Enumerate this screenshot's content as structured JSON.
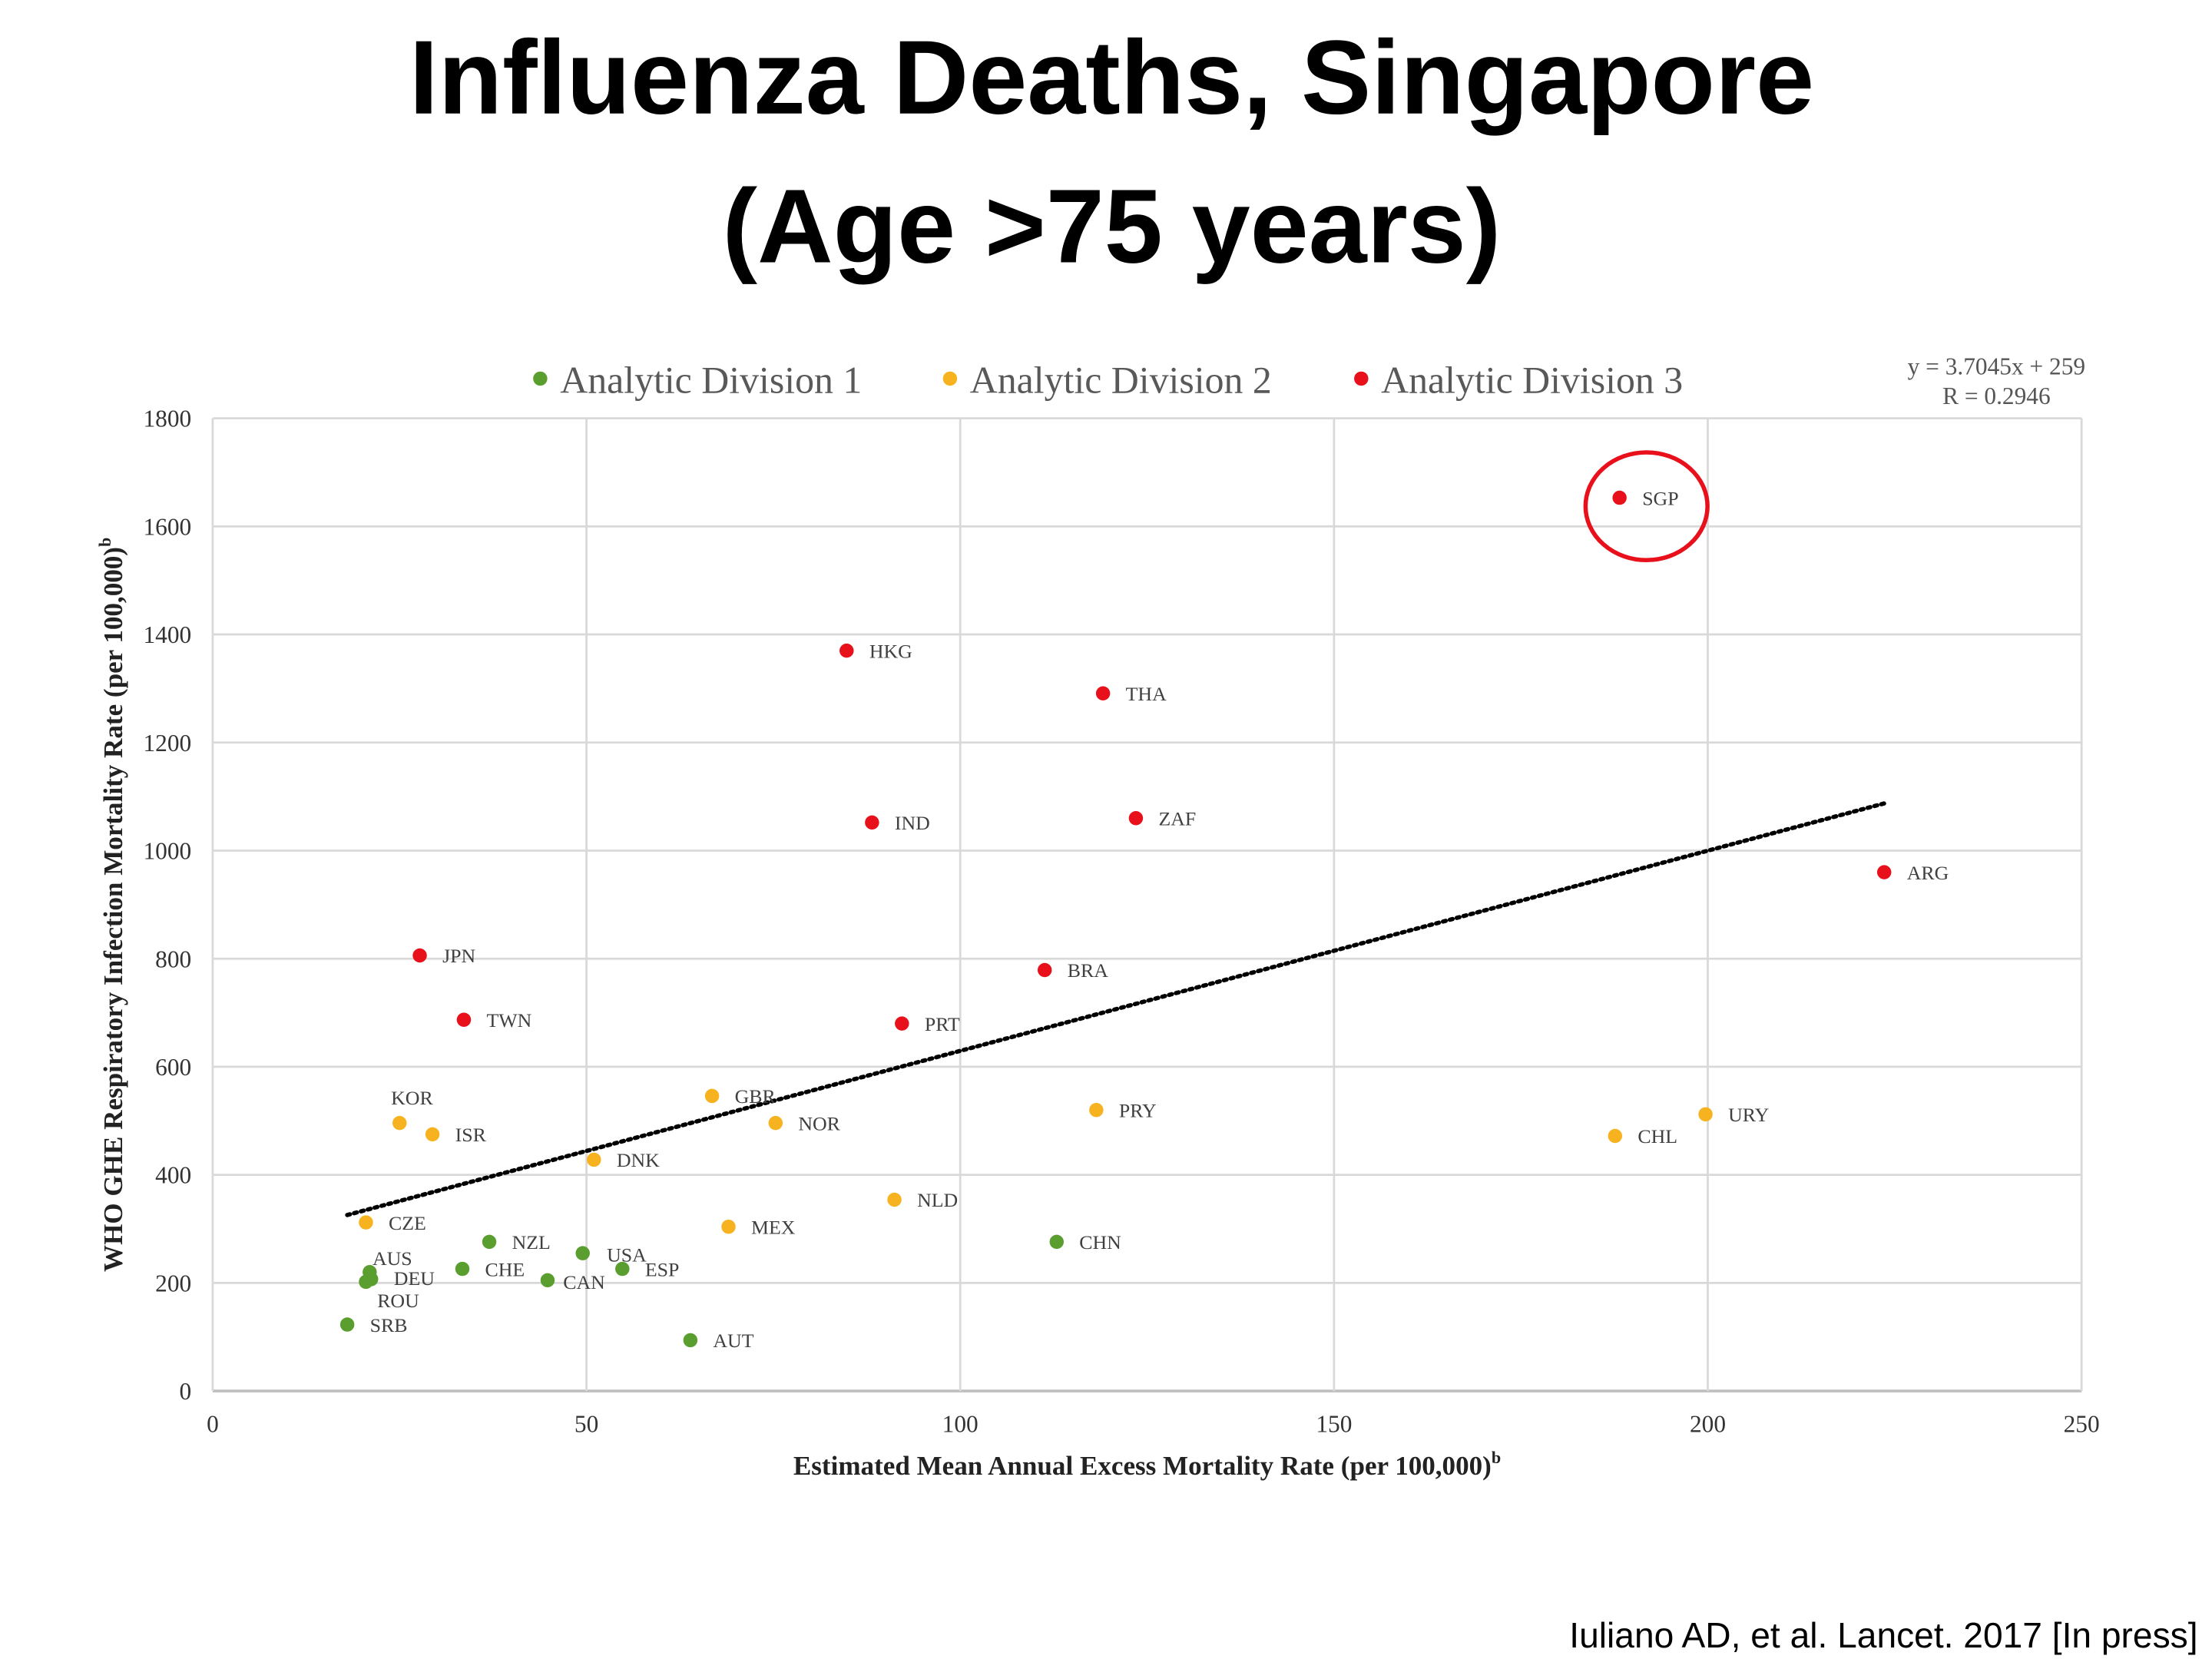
{
  "slide": {
    "title_line1": "Influenza Deaths, Singapore",
    "title_line2": "(Age >75 years)",
    "citation": "Iuliano AD, et al. Lancet. 2017 [In press]"
  },
  "chart_data": {
    "type": "scatter",
    "xlabel": "Estimated Mean Annual Excess Mortality Rate (per 100,000)",
    "xlabel_sup": "b",
    "ylabel": "WHO GHE Respiratory Infection Mortality Rate (per 100,000)",
    "ylabel_sup": "b",
    "xlim": [
      0,
      250
    ],
    "ylim": [
      0,
      1800
    ],
    "xticks": [
      0,
      50,
      100,
      150,
      200,
      250
    ],
    "yticks": [
      0,
      200,
      400,
      600,
      800,
      1000,
      1200,
      1400,
      1600,
      1800
    ],
    "grid": true,
    "legend_position": "top",
    "series": [
      {
        "name": "Analytic Division 1",
        "color": "#5a9e2f",
        "points": [
          {
            "label": "AUS",
            "x": 21.0,
            "y": 220
          },
          {
            "label": "DEU",
            "x": 21.2,
            "y": 207
          },
          {
            "label": "ROU",
            "x": 20.5,
            "y": 202
          },
          {
            "label": "SRB",
            "x": 18.0,
            "y": 123
          },
          {
            "label": "CHE",
            "x": 33.4,
            "y": 226
          },
          {
            "label": "NZL",
            "x": 37.0,
            "y": 276
          },
          {
            "label": "CAN",
            "x": 44.8,
            "y": 205
          },
          {
            "label": "USA",
            "x": 49.5,
            "y": 255
          },
          {
            "label": "ESP",
            "x": 54.8,
            "y": 226
          },
          {
            "label": "AUT",
            "x": 63.9,
            "y": 94
          },
          {
            "label": "CHN",
            "x": 112.9,
            "y": 276
          }
        ]
      },
      {
        "name": "Analytic Division 2",
        "color": "#f7b21f",
        "points": [
          {
            "label": "CZE",
            "x": 20.5,
            "y": 312
          },
          {
            "label": "KOR",
            "x": 25.0,
            "y": 496
          },
          {
            "label": "ISR",
            "x": 29.4,
            "y": 475
          },
          {
            "label": "DNK",
            "x": 51.0,
            "y": 428
          },
          {
            "label": "GBR",
            "x": 66.8,
            "y": 546
          },
          {
            "label": "MEX",
            "x": 69.0,
            "y": 304
          },
          {
            "label": "NOR",
            "x": 75.3,
            "y": 496
          },
          {
            "label": "NLD",
            "x": 91.2,
            "y": 354
          },
          {
            "label": "PRY",
            "x": 118.2,
            "y": 520
          },
          {
            "label": "CHL",
            "x": 187.6,
            "y": 472
          },
          {
            "label": "URY",
            "x": 199.7,
            "y": 512
          }
        ]
      },
      {
        "name": "Analytic Division 3",
        "color": "#e8101b",
        "points": [
          {
            "label": "JPN",
            "x": 27.7,
            "y": 806
          },
          {
            "label": "TWN",
            "x": 33.6,
            "y": 687
          },
          {
            "label": "HKG",
            "x": 84.8,
            "y": 1370
          },
          {
            "label": "IND",
            "x": 88.2,
            "y": 1052
          },
          {
            "label": "PRT",
            "x": 92.2,
            "y": 680
          },
          {
            "label": "BRA",
            "x": 111.3,
            "y": 779
          },
          {
            "label": "THA",
            "x": 119.1,
            "y": 1291
          },
          {
            "label": "ZAF",
            "x": 123.5,
            "y": 1060
          },
          {
            "label": "SGP",
            "x": 188.2,
            "y": 1653
          },
          {
            "label": "ARG",
            "x": 223.6,
            "y": 960
          }
        ]
      }
    ],
    "trendline": {
      "slope": 3.7045,
      "intercept": 259,
      "x_range": [
        18,
        224
      ],
      "style": "dotted"
    },
    "annotations": {
      "equation": "y = 3.7045x + 259",
      "r_value": "R  = 0.2946",
      "highlight": "SGP",
      "highlight_color": "#e8101b"
    }
  }
}
